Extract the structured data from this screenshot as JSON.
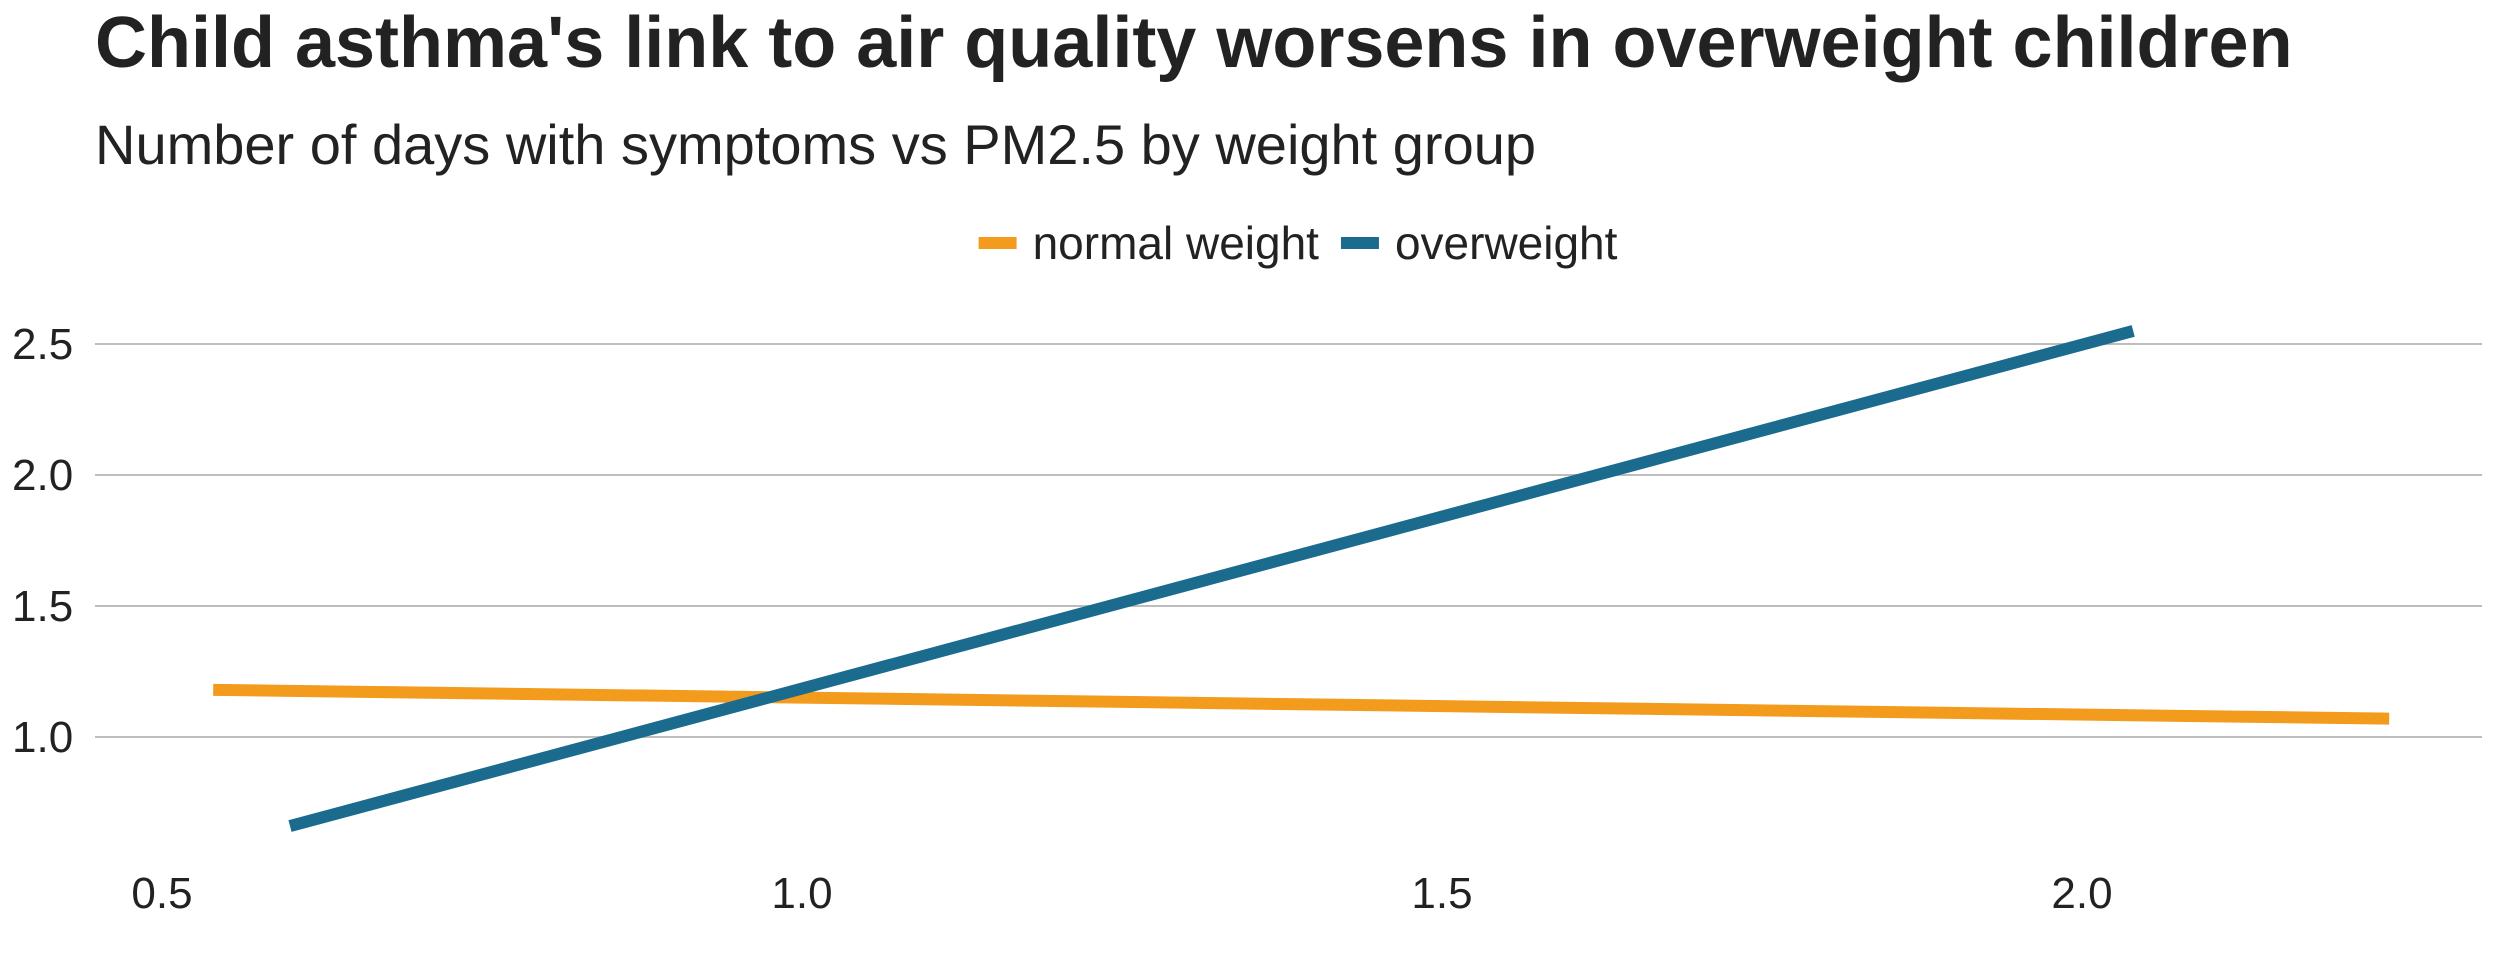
{
  "chart_data": {
    "type": "line",
    "title": "Child asthma's link to air quality worsens in overweight children",
    "subtitle": "Number of days with symptoms vs PM2.5 by weight group",
    "xlabel": "",
    "ylabel": "",
    "xlim": [
      0.5,
      2.3
    ],
    "ylim": [
      0.55,
      2.65
    ],
    "x_ticks": [
      "0.5",
      "1.0",
      "1.5",
      "2.0"
    ],
    "y_ticks": [
      "1.0",
      "1.5",
      "2.0",
      "2.5"
    ],
    "grid": "horizontal",
    "legend_position": "top",
    "series": [
      {
        "name": "normal weight",
        "color": "#F29B1D",
        "x": [
          0.54,
          2.24
        ],
        "y": [
          1.18,
          1.07
        ]
      },
      {
        "name": "overweight",
        "color": "#1B6B8E",
        "x": [
          0.6,
          2.04
        ],
        "y": [
          0.66,
          2.55
        ]
      }
    ]
  }
}
